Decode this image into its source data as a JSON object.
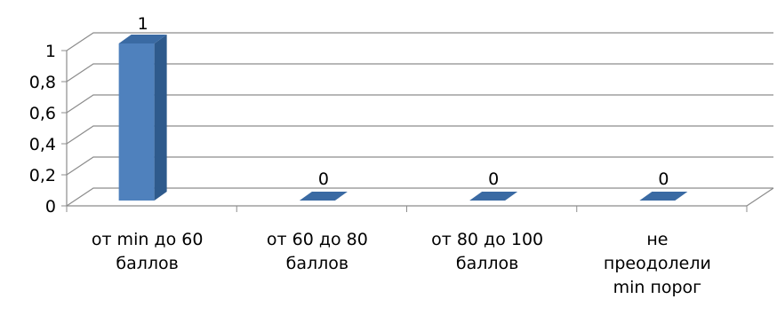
{
  "chart_data": {
    "type": "bar",
    "style": "3d-column",
    "categories": [
      [
        "от min до 60",
        "баллов"
      ],
      [
        "от 60 до 80",
        "баллов"
      ],
      [
        "от 80 до 100",
        "баллов"
      ],
      [
        "не",
        "преодолели",
        "min порог"
      ]
    ],
    "series": [
      {
        "values": [
          1,
          0,
          0,
          0
        ]
      }
    ],
    "data_labels": [
      "1",
      "0",
      "0",
      "0"
    ],
    "y_ticks": [
      "0",
      "0,2",
      "0,4",
      "0,6",
      "0,8",
      "1"
    ],
    "ylim": [
      0,
      1
    ],
    "grid": true,
    "legend": "none",
    "colors": {
      "bar_front": "#4f81bd",
      "bar_side": "#2e5a8c",
      "bar_top": "#3a6aa3",
      "gridline": "#8c8c8c",
      "axis": "#8c8c8c"
    }
  }
}
